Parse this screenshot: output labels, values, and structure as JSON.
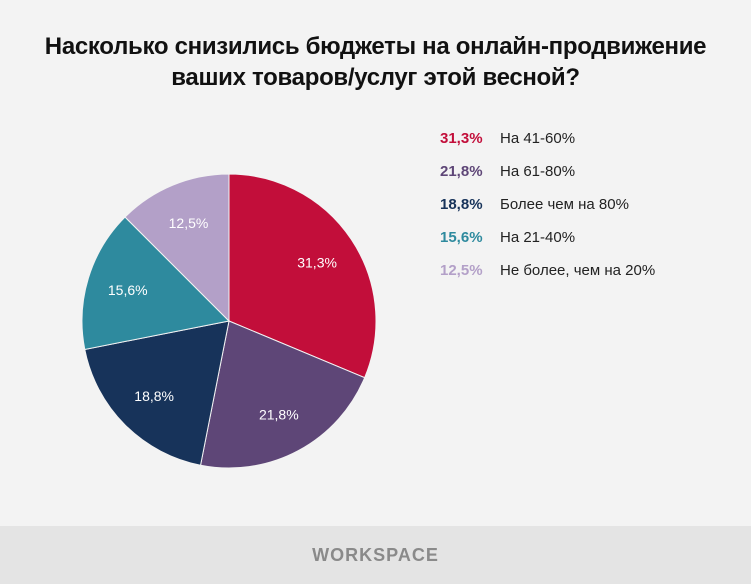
{
  "title_line1": "Насколько снизились бюджеты на онлайн-продвижение",
  "title_line2": "ваших товаров/услуг этой весной?",
  "chart_data": {
    "type": "pie",
    "title": "Насколько снизились бюджеты на онлайн-продвижение ваших товаров/услуг этой весной?",
    "legend_position": "right",
    "slices": [
      {
        "value": 31.3,
        "label": "31,3%",
        "name": "На 41-60%",
        "color": "#c20e3a"
      },
      {
        "value": 21.8,
        "label": "21,8%",
        "name": "На 61-80%",
        "color": "#5e4677"
      },
      {
        "value": 18.8,
        "label": "18,8%",
        "name": "Более чем на 80%",
        "color": "#17335a"
      },
      {
        "value": 15.6,
        "label": "15,6%",
        "name": "На 21-40%",
        "color": "#2e8a9e"
      },
      {
        "value": 12.5,
        "label": "12,5%",
        "name": "Не более, чем на 20%",
        "color": "#b3a0c8"
      }
    ]
  },
  "footer": {
    "logo": "WORKSPACE"
  }
}
